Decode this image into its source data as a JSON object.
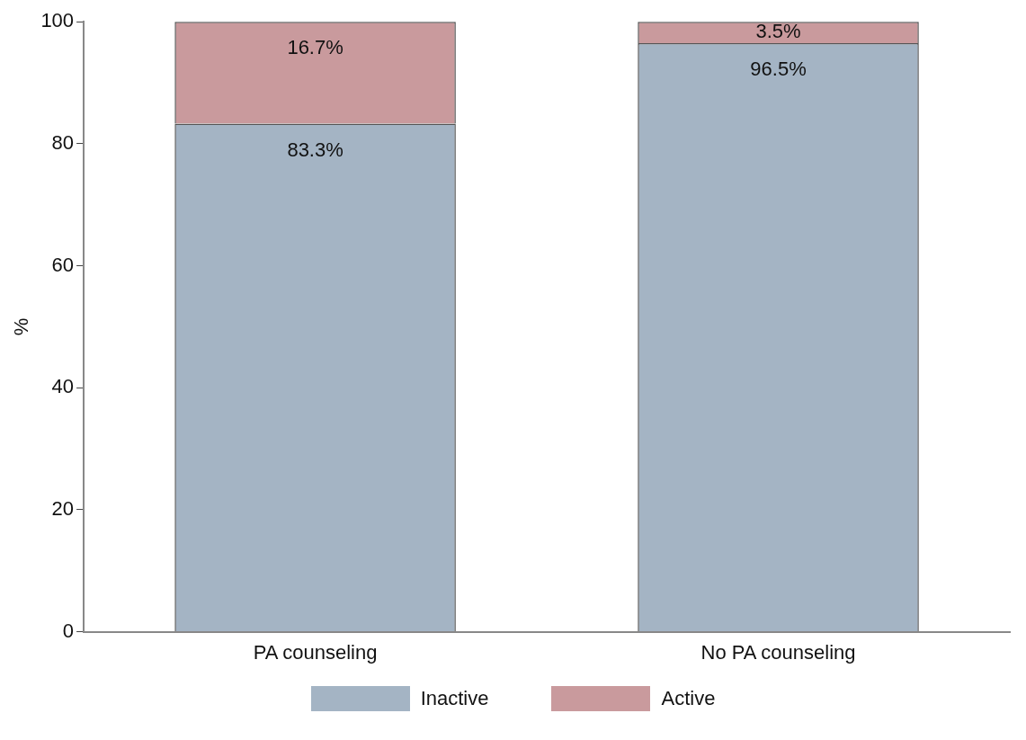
{
  "chart_data": {
    "type": "bar",
    "stacked": true,
    "ylabel": "%",
    "categories": [
      "PA counseling",
      "No PA counseling"
    ],
    "series": [
      {
        "name": "Inactive",
        "color": "#a4b4c4",
        "values": [
          83.3,
          96.5
        ],
        "value_labels": [
          "83.3%",
          "96.5%"
        ]
      },
      {
        "name": "Active",
        "color": "#c99a9d",
        "values": [
          16.7,
          3.5
        ],
        "value_labels": [
          "16.7%",
          "3.5%"
        ]
      }
    ],
    "ylim": [
      0,
      100
    ],
    "yticks": [
      0,
      20,
      40,
      60,
      80,
      100
    ],
    "grid": false,
    "legend": "bottom"
  }
}
